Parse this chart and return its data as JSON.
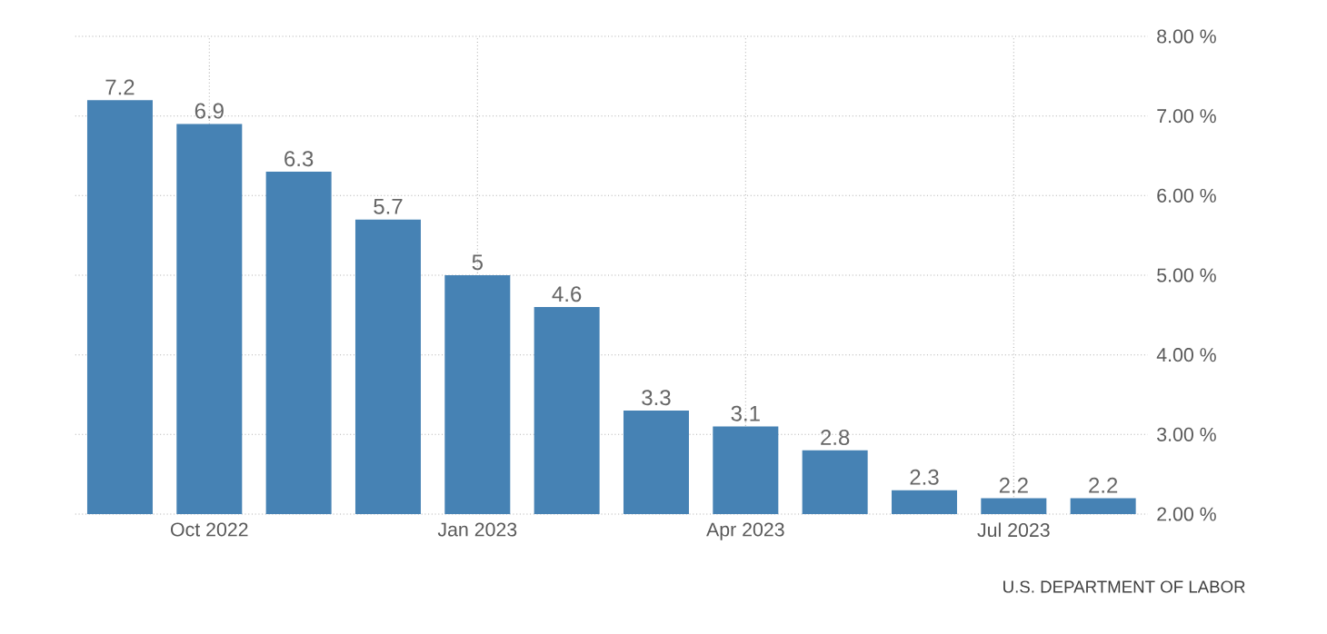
{
  "chart_data": {
    "type": "bar",
    "categories": [
      null,
      "Oct 2022",
      null,
      null,
      "Jan 2023",
      null,
      null,
      "Apr 2023",
      null,
      null,
      "Jul 2023",
      null
    ],
    "values": [
      7.2,
      6.9,
      6.3,
      5.7,
      5,
      4.6,
      3.3,
      3.1,
      2.8,
      2.3,
      2.2,
      2.2
    ],
    "color": "#4682b4",
    "ylim": [
      2,
      8
    ],
    "yticks": [
      {
        "value": 2,
        "label": "2.00 %"
      },
      {
        "value": 3,
        "label": "3.00 %"
      },
      {
        "value": 4,
        "label": "4.00 %"
      },
      {
        "value": 5,
        "label": "5.00 %"
      },
      {
        "value": 6,
        "label": "6.00 %"
      },
      {
        "value": 7,
        "label": "7.00 %"
      },
      {
        "value": 8,
        "label": "8.00 %"
      }
    ],
    "grid": true,
    "data_labels": true,
    "annotations": [
      "U.S. DEPARTMENT OF LABOR"
    ]
  }
}
